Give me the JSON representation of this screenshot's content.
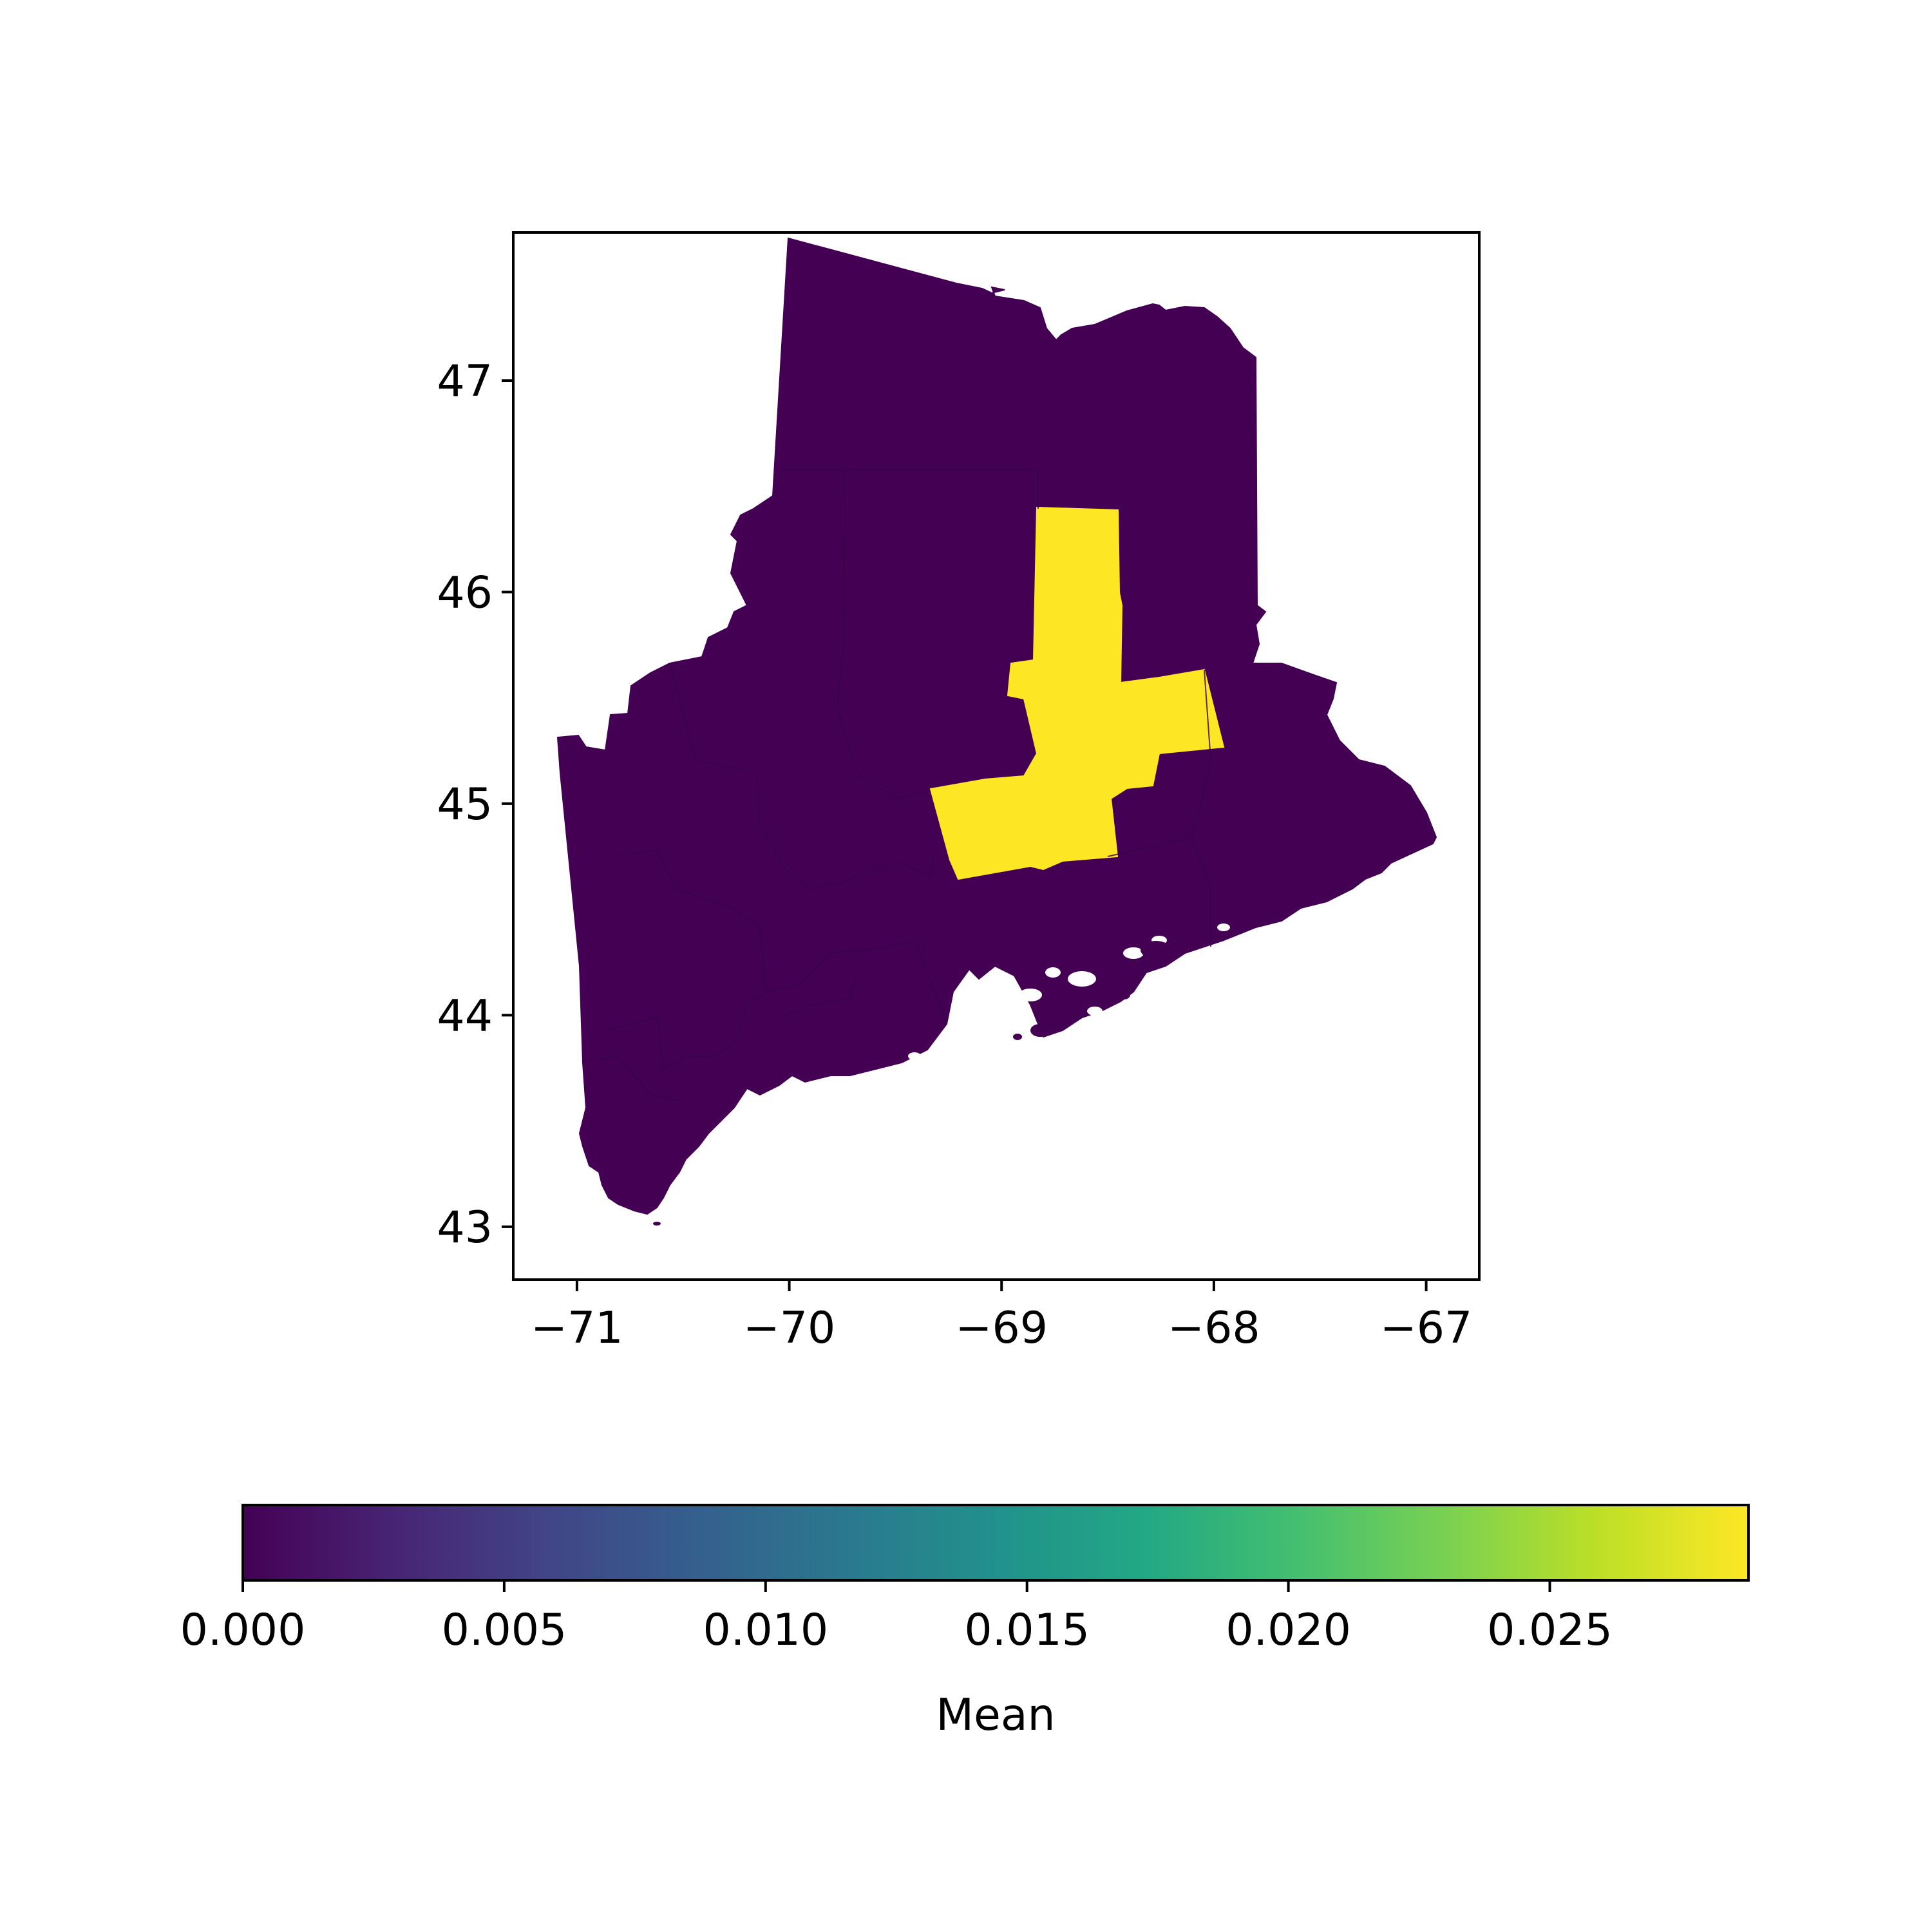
{
  "chart_data": {
    "type": "choropleth",
    "region": "Maine",
    "x_axis": {
      "ticks": [
        -71,
        -70,
        -69,
        -68,
        -67
      ],
      "tick_labels": [
        "−71",
        "−70",
        "−69",
        "−68",
        "−67"
      ],
      "xlim": [
        -71.3,
        -66.75
      ]
    },
    "y_axis": {
      "ticks": [
        43,
        44,
        45,
        46,
        47
      ],
      "tick_labels": [
        "43",
        "44",
        "45",
        "46",
        "47"
      ],
      "ylim": [
        42.75,
        47.7
      ]
    },
    "grid": false,
    "regions": [
      {
        "area": "all other counties",
        "value": 0.0
      },
      {
        "area": "central cross-shaped highlighted county group",
        "value": 0.0288
      }
    ],
    "colorbar": {
      "label": "Mean",
      "orientation": "horizontal",
      "position": "bottom",
      "colormap": "viridis",
      "range": [
        0.0,
        0.0288
      ],
      "ticks": [
        0.0,
        0.005,
        0.01,
        0.015,
        0.02,
        0.025
      ],
      "tick_labels": [
        "0.000",
        "0.005",
        "0.010",
        "0.015",
        "0.020",
        "0.025"
      ]
    },
    "colors": {
      "low": "#440154",
      "high": "#fde725"
    }
  }
}
